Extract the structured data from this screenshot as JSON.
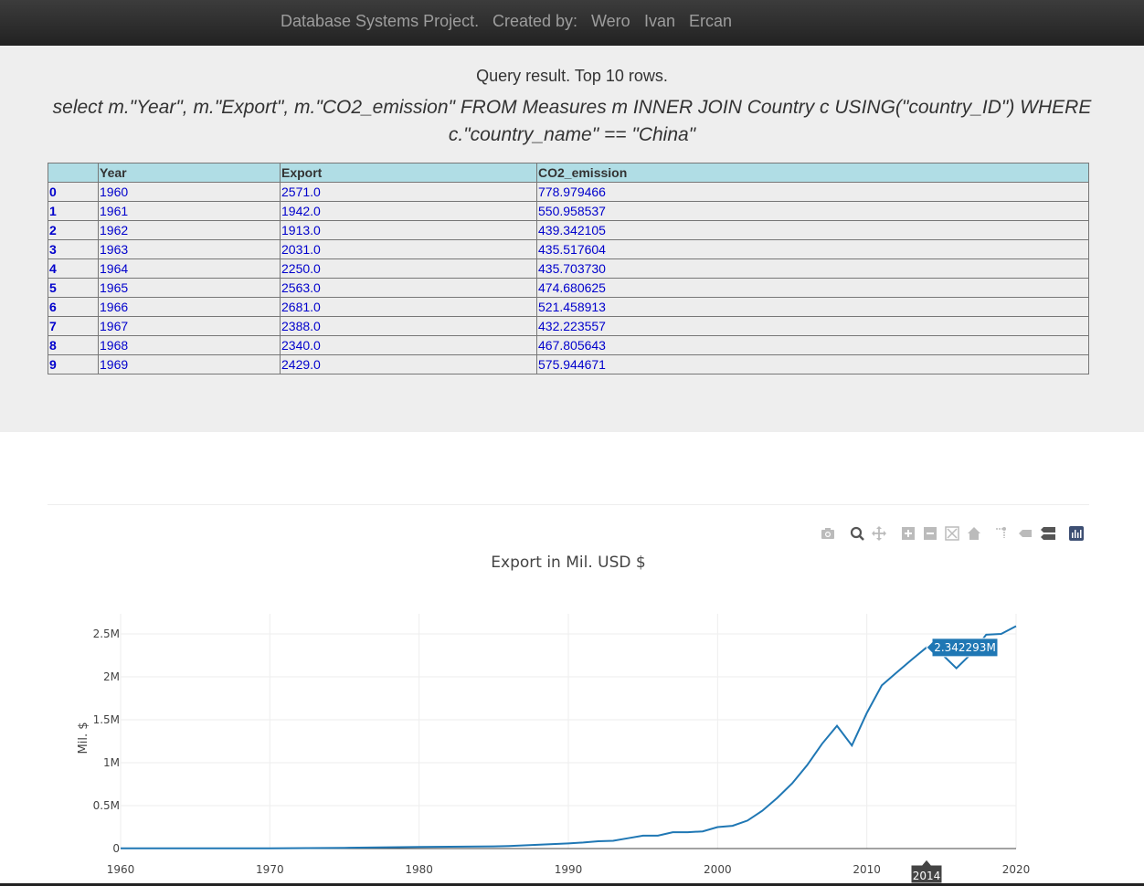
{
  "navbar": {
    "project": "Database Systems Project.",
    "created_by": "Created by:",
    "authors": [
      "Wero",
      "Ivan",
      "Ercan"
    ]
  },
  "query": {
    "title": "Query result. Top 10 rows.",
    "sql_line1": "select m.\"Year\", m.\"Export\", m.\"CO2_emission\" FROM Measures m INNER JOIN Country c USING(\"country_ID\") WHERE",
    "sql_line2": "c.\"country_name\" == \"China\""
  },
  "table": {
    "headers": [
      "",
      "Year",
      "Export",
      "CO2_emission"
    ],
    "rows": [
      [
        "0",
        "1960",
        "2571.0",
        "778.979466"
      ],
      [
        "1",
        "1961",
        "1942.0",
        "550.958537"
      ],
      [
        "2",
        "1962",
        "1913.0",
        "439.342105"
      ],
      [
        "3",
        "1963",
        "2031.0",
        "435.517604"
      ],
      [
        "4",
        "1964",
        "2250.0",
        "435.703730"
      ],
      [
        "5",
        "1965",
        "2563.0",
        "474.680625"
      ],
      [
        "6",
        "1966",
        "2681.0",
        "521.458913"
      ],
      [
        "7",
        "1967",
        "2388.0",
        "432.223557"
      ],
      [
        "8",
        "1968",
        "2340.0",
        "467.805643"
      ],
      [
        "9",
        "1969",
        "2429.0",
        "575.944671"
      ]
    ]
  },
  "modebar": [
    "camera-icon",
    "zoom-icon",
    "pan-icon",
    "zoom-in-icon",
    "zoom-out-icon",
    "autoscale-icon",
    "reset-axes-icon",
    "spike-lines-icon",
    "hover-closest-icon",
    "hover-compare-icon",
    "plotly-logo-icon"
  ],
  "chart_data": {
    "type": "line",
    "title": "Export in Mil. USD $",
    "ylabel": "Mil. $",
    "xlabel": "",
    "xlim": [
      1960,
      2020
    ],
    "ylim": [
      0,
      2.5
    ],
    "y_unit": "M",
    "x_ticks": [
      "1960",
      "1970",
      "1980",
      "1990",
      "2000",
      "2010",
      "2020"
    ],
    "y_ticks": [
      "0",
      "0.5M",
      "1M",
      "1.5M",
      "2M",
      "2.5M"
    ],
    "grid": true,
    "line_color": "#1f77b4",
    "series": [
      {
        "x": [
          1960,
          1965,
          1970,
          1975,
          1980,
          1985,
          1986,
          1990,
          1991,
          1992,
          1993,
          1994,
          1995,
          1996,
          1997,
          1998,
          1999,
          2000,
          2001,
          2002,
          2003,
          2004,
          2005,
          2006,
          2007,
          2008,
          2009,
          2010,
          2011,
          2012,
          2013,
          2014,
          2015,
          2016,
          2017,
          2018,
          2019,
          2020
        ],
        "y": [
          0.0026,
          0.0026,
          0.0025,
          0.008,
          0.018,
          0.025,
          0.03,
          0.06,
          0.07,
          0.085,
          0.09,
          0.12,
          0.15,
          0.15,
          0.19,
          0.19,
          0.2,
          0.25,
          0.265,
          0.325,
          0.44,
          0.59,
          0.76,
          0.97,
          1.22,
          1.43,
          1.2,
          1.58,
          1.9,
          2.05,
          2.2,
          2.342293,
          2.27,
          2.1,
          2.27,
          2.49,
          2.5,
          2.59
        ]
      }
    ],
    "tooltip": {
      "value_label": "2.342293M",
      "x_label": "2014",
      "x": 2014,
      "y": 2.342293
    }
  }
}
